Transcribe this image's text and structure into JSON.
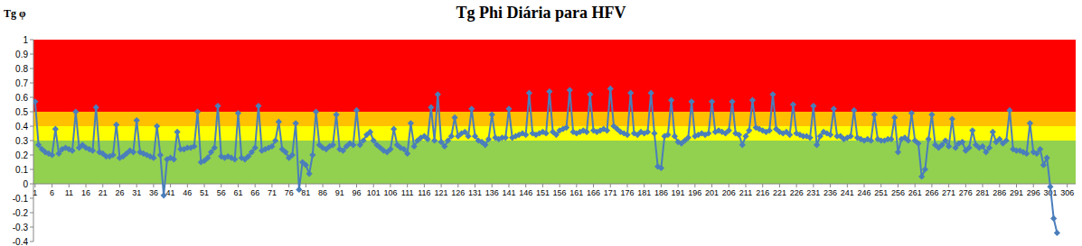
{
  "chart_data": {
    "type": "line",
    "title": "Tg Phi Diária para HFV",
    "y_label": "Tg φ",
    "categories": [
      1,
      null,
      null,
      null,
      null,
      6,
      null,
      null,
      null,
      null,
      11,
      null,
      null,
      null,
      null,
      16,
      null,
      null,
      null,
      null,
      21,
      null,
      null,
      null,
      null,
      26,
      null,
      null,
      null,
      null,
      31,
      null,
      null,
      null,
      null,
      36,
      null,
      null,
      null,
      null,
      41,
      null,
      null,
      null,
      null,
      46,
      null,
      null,
      null,
      null,
      51,
      null,
      null,
      null,
      null,
      56,
      null,
      null,
      null,
      null,
      61,
      null,
      null,
      null,
      null,
      66,
      null,
      null,
      null,
      null,
      71,
      null,
      null,
      null,
      null,
      76,
      null,
      null,
      null,
      null,
      81,
      null,
      null,
      null,
      null,
      86,
      null,
      null,
      null,
      null,
      91,
      null,
      null,
      null,
      null,
      96,
      null,
      null,
      null,
      null,
      101,
      null,
      null,
      null,
      null,
      106,
      null,
      null,
      null,
      null,
      111,
      null,
      null,
      null,
      null,
      116,
      null,
      null,
      null,
      null,
      121,
      null,
      null,
      null,
      null,
      126,
      null,
      null,
      null,
      null,
      131,
      null,
      null,
      null,
      null,
      136,
      null,
      null,
      null,
      null,
      141,
      null,
      null,
      null,
      null,
      146,
      null,
      null,
      null,
      null,
      151,
      null,
      null,
      null,
      null,
      156,
      null,
      null,
      null,
      null,
      161,
      null,
      null,
      null,
      null,
      166,
      null,
      null,
      null,
      null,
      171,
      null,
      null,
      null,
      null,
      176,
      null,
      null,
      null,
      null,
      181,
      null,
      null,
      null,
      null,
      186,
      null,
      null,
      null,
      null,
      191,
      null,
      null,
      null,
      null,
      196,
      null,
      null,
      null,
      null,
      201,
      null,
      null,
      null,
      null,
      206,
      null,
      null,
      null,
      null,
      211,
      null,
      null,
      null,
      null,
      216,
      null,
      null,
      null,
      null,
      221,
      null,
      null,
      null,
      null,
      226,
      null,
      null,
      null,
      null,
      231,
      null,
      null,
      null,
      null,
      236,
      null,
      null,
      null,
      null,
      241,
      null,
      null,
      null,
      null,
      246,
      null,
      null,
      null,
      null,
      251,
      null,
      null,
      null,
      null,
      256,
      null,
      null,
      null,
      null,
      261,
      null,
      null,
      null,
      null,
      266,
      null,
      null,
      null,
      null,
      271,
      null,
      null,
      null,
      null,
      276,
      null,
      null,
      null,
      null,
      281,
      null,
      null,
      null,
      null,
      286,
      null,
      null,
      null,
      null,
      291,
      null,
      null,
      null,
      null,
      296,
      null,
      null,
      null,
      null,
      301,
      null,
      null,
      null,
      null,
      306,
      null,
      null
    ],
    "values": [
      0.57,
      0.27,
      0.24,
      0.22,
      0.21,
      0.2,
      0.38,
      0.21,
      0.24,
      0.25,
      0.24,
      0.23,
      0.5,
      0.25,
      0.27,
      0.25,
      0.24,
      0.23,
      0.53,
      0.22,
      0.21,
      0.19,
      0.19,
      0.2,
      0.41,
      0.18,
      0.19,
      0.21,
      0.23,
      0.22,
      0.44,
      0.22,
      0.21,
      0.2,
      0.19,
      0.18,
      0.4,
      0.2,
      -0.08,
      0.17,
      0.18,
      0.17,
      0.36,
      0.24,
      0.24,
      0.25,
      0.25,
      0.26,
      0.5,
      0.15,
      0.16,
      0.18,
      0.22,
      0.25,
      0.54,
      0.19,
      0.18,
      0.19,
      0.18,
      0.17,
      0.49,
      0.18,
      0.17,
      0.19,
      0.22,
      0.25,
      0.54,
      0.23,
      0.24,
      0.25,
      0.26,
      0.3,
      0.43,
      0.24,
      0.22,
      0.18,
      0.2,
      0.42,
      -0.04,
      0.15,
      0.13,
      0.07,
      0.2,
      0.5,
      0.27,
      0.25,
      0.24,
      0.26,
      0.27,
      0.48,
      0.24,
      0.23,
      0.26,
      0.28,
      0.27,
      0.51,
      0.27,
      0.3,
      0.34,
      0.36,
      0.3,
      0.27,
      0.25,
      0.23,
      0.22,
      0.24,
      0.38,
      0.27,
      0.25,
      0.24,
      0.21,
      0.42,
      0.26,
      0.3,
      0.32,
      0.33,
      0.31,
      0.53,
      0.3,
      0.62,
      0.29,
      0.26,
      0.3,
      0.33,
      0.46,
      0.33,
      0.35,
      0.36,
      0.33,
      0.52,
      0.33,
      0.3,
      0.29,
      0.27,
      0.31,
      0.48,
      0.32,
      0.31,
      0.32,
      0.32,
      0.52,
      0.32,
      0.33,
      0.34,
      0.35,
      0.34,
      0.63,
      0.35,
      0.34,
      0.35,
      0.36,
      0.35,
      0.64,
      0.36,
      0.34,
      0.37,
      0.38,
      0.39,
      0.65,
      0.36,
      0.35,
      0.36,
      0.37,
      0.36,
      0.62,
      0.37,
      0.36,
      0.37,
      0.38,
      0.37,
      0.66,
      0.4,
      0.38,
      0.36,
      0.35,
      0.34,
      0.63,
      0.35,
      0.34,
      0.36,
      0.35,
      0.36,
      0.63,
      0.35,
      0.12,
      0.11,
      0.33,
      0.34,
      0.58,
      0.33,
      0.29,
      0.28,
      0.3,
      0.32,
      0.57,
      0.33,
      0.34,
      0.35,
      0.34,
      0.35,
      0.57,
      0.36,
      0.37,
      0.36,
      0.35,
      0.37,
      0.57,
      0.35,
      0.34,
      0.27,
      0.33,
      0.37,
      0.58,
      0.39,
      0.38,
      0.37,
      0.36,
      0.37,
      0.62,
      0.38,
      0.36,
      0.35,
      0.36,
      0.34,
      0.55,
      0.35,
      0.34,
      0.33,
      0.33,
      0.32,
      0.54,
      0.27,
      0.33,
      0.36,
      0.35,
      0.34,
      0.52,
      0.33,
      0.33,
      0.31,
      0.32,
      0.33,
      0.51,
      0.32,
      0.31,
      0.3,
      0.31,
      0.3,
      0.48,
      0.31,
      0.3,
      0.3,
      0.31,
      0.31,
      0.46,
      0.22,
      0.31,
      0.32,
      0.3,
      0.49,
      0.3,
      0.28,
      0.05,
      0.1,
      0.31,
      0.48,
      0.27,
      0.25,
      0.27,
      0.3,
      0.26,
      0.45,
      0.25,
      0.28,
      0.29,
      0.23,
      0.25,
      0.37,
      0.27,
      0.25,
      0.26,
      0.22,
      0.25,
      0.36,
      0.29,
      0.31,
      0.28,
      0.3,
      0.51,
      0.24,
      0.23,
      0.23,
      0.22,
      0.21,
      0.42,
      0.22,
      0.21,
      0.24,
      0.13,
      0.18,
      -0.02,
      -0.24,
      -0.34,
      null,
      null,
      null,
      null,
      null
    ],
    "color": "#4a7ebb",
    "marker": "diamond",
    "line_style": "solid",
    "bands": [
      {
        "from": 0.5,
        "to": 1,
        "color": "#ff0000"
      },
      {
        "from": 0.4,
        "to": 0.5,
        "color": "#ffc000"
      },
      {
        "from": 0.3,
        "to": 0.4,
        "color": "#ffff00"
      },
      {
        "from": 0,
        "to": 0.3,
        "color": "#92d050"
      }
    ],
    "ylim": [
      -0.4,
      1
    ],
    "yticks": [
      -0.4,
      -0.3,
      -0.2,
      -0.1,
      0,
      0.1,
      0.2,
      0.3,
      0.4,
      0.5,
      0.6,
      0.7,
      0.8,
      0.9,
      1
    ],
    "grid": false
  }
}
